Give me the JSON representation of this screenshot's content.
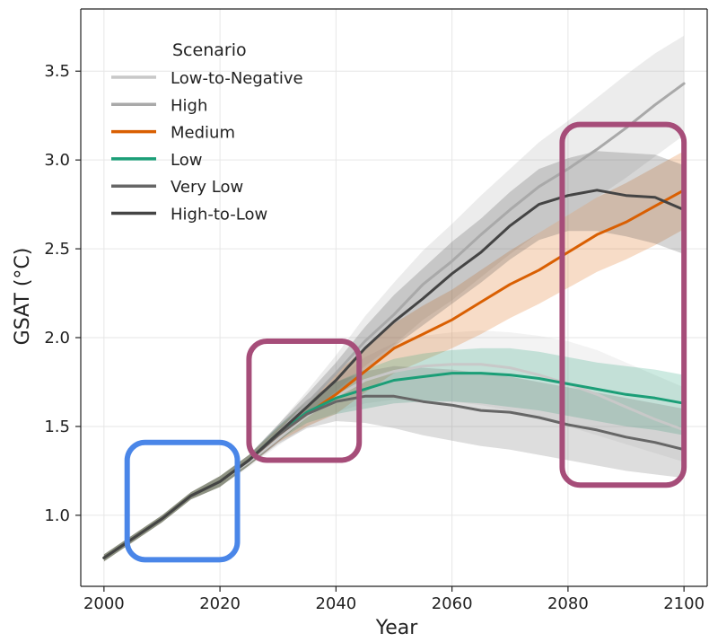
{
  "chart_data": {
    "type": "line",
    "xlabel": "Year",
    "ylabel": "GSAT (°C)",
    "xlim": [
      1996,
      2104
    ],
    "ylim": [
      0.6,
      3.85
    ],
    "x_ticks": [
      2000,
      2020,
      2040,
      2060,
      2080,
      2100
    ],
    "y_ticks": [
      1.0,
      1.5,
      2.0,
      2.5,
      3.0,
      3.5
    ],
    "grid": true,
    "legend": {
      "title": "Scenario",
      "placement": "top-left"
    },
    "series": [
      {
        "name": "Low-to-Negative",
        "color": "#c8c8c8",
        "x": [
          2000,
          2005,
          2010,
          2015,
          2020,
          2025,
          2030,
          2035,
          2040,
          2045,
          2050,
          2055,
          2060,
          2065,
          2070,
          2075,
          2080,
          2085,
          2090,
          2095,
          2100
        ],
        "y": [
          0.76,
          0.87,
          0.98,
          1.11,
          1.19,
          1.3,
          1.43,
          1.56,
          1.67,
          1.76,
          1.81,
          1.84,
          1.85,
          1.85,
          1.83,
          1.79,
          1.74,
          1.68,
          1.61,
          1.54,
          1.48
        ],
        "band_lo": [
          0.74,
          0.85,
          0.96,
          1.09,
          1.16,
          1.27,
          1.39,
          1.5,
          1.58,
          1.63,
          1.65,
          1.65,
          1.64,
          1.62,
          1.59,
          1.55,
          1.5,
          1.45,
          1.4,
          1.35,
          1.3
        ],
        "band_hi": [
          0.78,
          0.89,
          1.0,
          1.13,
          1.22,
          1.33,
          1.47,
          1.62,
          1.76,
          1.89,
          1.97,
          2.01,
          2.03,
          2.04,
          2.03,
          2.01,
          1.98,
          1.93,
          1.86,
          1.79,
          1.72
        ]
      },
      {
        "name": "High",
        "color": "#a9a9a9",
        "x": [
          2000,
          2005,
          2010,
          2015,
          2020,
          2025,
          2030,
          2035,
          2040,
          2045,
          2050,
          2055,
          2060,
          2065,
          2070,
          2075,
          2080,
          2085,
          2090,
          2095,
          2100
        ],
        "y": [
          0.76,
          0.87,
          0.98,
          1.11,
          1.19,
          1.31,
          1.46,
          1.63,
          1.8,
          1.98,
          2.13,
          2.3,
          2.43,
          2.58,
          2.72,
          2.85,
          2.95,
          3.06,
          3.18,
          3.31,
          3.43
        ],
        "band_lo": [
          0.74,
          0.85,
          0.96,
          1.09,
          1.16,
          1.28,
          1.41,
          1.56,
          1.7,
          1.84,
          1.96,
          2.1,
          2.21,
          2.34,
          2.47,
          2.59,
          2.69,
          2.79,
          2.9,
          3.02,
          3.14
        ],
        "band_hi": [
          0.78,
          0.89,
          1.0,
          1.13,
          1.22,
          1.34,
          1.51,
          1.7,
          1.9,
          2.12,
          2.31,
          2.49,
          2.64,
          2.8,
          2.95,
          3.1,
          3.22,
          3.35,
          3.48,
          3.6,
          3.7
        ]
      },
      {
        "name": "Medium",
        "color": "#d95f02",
        "x": [
          2000,
          2005,
          2010,
          2015,
          2020,
          2025,
          2030,
          2035,
          2040,
          2045,
          2050,
          2055,
          2060,
          2065,
          2070,
          2075,
          2080,
          2085,
          2090,
          2095,
          2100
        ],
        "y": [
          0.76,
          0.87,
          0.98,
          1.11,
          1.19,
          1.31,
          1.45,
          1.57,
          1.68,
          1.81,
          1.94,
          2.02,
          2.1,
          2.2,
          2.3,
          2.38,
          2.48,
          2.58,
          2.65,
          2.74,
          2.83
        ],
        "band_lo": [
          0.74,
          0.85,
          0.96,
          1.09,
          1.16,
          1.28,
          1.41,
          1.5,
          1.57,
          1.69,
          1.8,
          1.87,
          1.94,
          2.02,
          2.11,
          2.19,
          2.28,
          2.37,
          2.44,
          2.52,
          2.61
        ],
        "band_hi": [
          0.78,
          0.89,
          1.0,
          1.13,
          1.22,
          1.34,
          1.49,
          1.64,
          1.8,
          1.94,
          2.08,
          2.18,
          2.27,
          2.38,
          2.49,
          2.59,
          2.69,
          2.79,
          2.87,
          2.96,
          3.05
        ]
      },
      {
        "name": "Low",
        "color": "#1b9e77",
        "x": [
          2000,
          2005,
          2010,
          2015,
          2020,
          2025,
          2030,
          2035,
          2040,
          2045,
          2050,
          2055,
          2060,
          2065,
          2070,
          2075,
          2080,
          2085,
          2090,
          2095,
          2100
        ],
        "y": [
          0.76,
          0.87,
          0.98,
          1.11,
          1.19,
          1.31,
          1.46,
          1.58,
          1.66,
          1.71,
          1.76,
          1.78,
          1.8,
          1.8,
          1.79,
          1.77,
          1.74,
          1.71,
          1.68,
          1.66,
          1.63
        ],
        "band_lo": [
          0.74,
          0.85,
          0.96,
          1.09,
          1.16,
          1.28,
          1.42,
          1.52,
          1.57,
          1.6,
          1.63,
          1.64,
          1.64,
          1.63,
          1.61,
          1.59,
          1.56,
          1.53,
          1.5,
          1.48,
          1.45
        ],
        "band_hi": [
          0.78,
          0.89,
          1.0,
          1.13,
          1.22,
          1.34,
          1.5,
          1.64,
          1.75,
          1.82,
          1.88,
          1.91,
          1.93,
          1.94,
          1.94,
          1.92,
          1.89,
          1.86,
          1.84,
          1.82,
          1.79
        ]
      },
      {
        "name": "Very Low",
        "color": "#666666",
        "x": [
          2000,
          2005,
          2010,
          2015,
          2020,
          2025,
          2030,
          2035,
          2040,
          2045,
          2050,
          2055,
          2060,
          2065,
          2070,
          2075,
          2080,
          2085,
          2090,
          2095,
          2100
        ],
        "y": [
          0.76,
          0.87,
          0.98,
          1.11,
          1.19,
          1.31,
          1.45,
          1.57,
          1.64,
          1.67,
          1.67,
          1.64,
          1.62,
          1.59,
          1.58,
          1.55,
          1.51,
          1.48,
          1.44,
          1.41,
          1.37
        ],
        "band_lo": [
          0.74,
          0.85,
          0.96,
          1.09,
          1.16,
          1.28,
          1.4,
          1.49,
          1.53,
          1.52,
          1.49,
          1.45,
          1.42,
          1.39,
          1.37,
          1.34,
          1.31,
          1.28,
          1.25,
          1.23,
          1.21
        ],
        "band_hi": [
          0.78,
          0.89,
          1.0,
          1.13,
          1.22,
          1.34,
          1.5,
          1.65,
          1.75,
          1.81,
          1.84,
          1.83,
          1.82,
          1.8,
          1.78,
          1.75,
          1.72,
          1.69,
          1.66,
          1.63,
          1.6
        ]
      },
      {
        "name": "High-to-Low",
        "color": "#444444",
        "x": [
          2000,
          2005,
          2010,
          2015,
          2020,
          2025,
          2030,
          2035,
          2040,
          2045,
          2050,
          2055,
          2060,
          2065,
          2070,
          2075,
          2080,
          2085,
          2090,
          2095,
          2100
        ],
        "y": [
          0.76,
          0.87,
          0.98,
          1.11,
          1.19,
          1.31,
          1.46,
          1.61,
          1.76,
          1.94,
          2.09,
          2.22,
          2.36,
          2.48,
          2.63,
          2.75,
          2.8,
          2.83,
          2.8,
          2.79,
          2.72
        ],
        "band_lo": [
          0.74,
          0.85,
          0.96,
          1.09,
          1.16,
          1.28,
          1.41,
          1.55,
          1.67,
          1.82,
          1.95,
          2.07,
          2.19,
          2.31,
          2.44,
          2.55,
          2.6,
          2.6,
          2.57,
          2.53,
          2.47
        ],
        "band_hi": [
          0.78,
          0.89,
          1.0,
          1.13,
          1.22,
          1.34,
          1.51,
          1.68,
          1.86,
          2.06,
          2.24,
          2.39,
          2.54,
          2.67,
          2.82,
          2.95,
          3.01,
          3.05,
          3.04,
          3.03,
          2.97
        ]
      }
    ],
    "highlight_boxes": [
      {
        "color": "#4a86e8",
        "x_range": [
          2004,
          2023
        ],
        "y_range": [
          0.75,
          1.41
        ]
      },
      {
        "color": "#a64d79",
        "x_range": [
          2025,
          2044
        ],
        "y_range": [
          1.31,
          1.98
        ]
      },
      {
        "color": "#a64d79",
        "x_range": [
          2079,
          2100
        ],
        "y_range": [
          1.17,
          3.2
        ]
      }
    ]
  }
}
